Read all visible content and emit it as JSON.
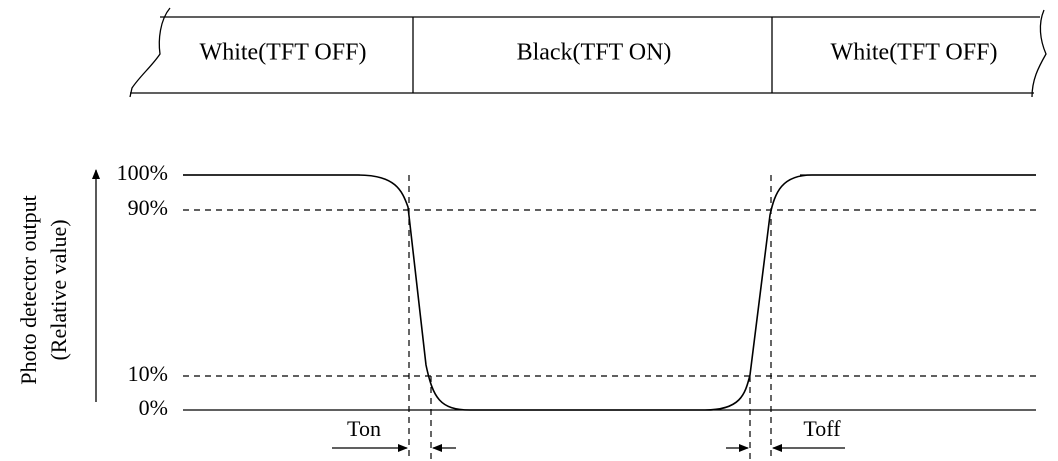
{
  "states": [
    {
      "label": "White(TFT OFF)"
    },
    {
      "label": "Black(TFT ON)"
    },
    {
      "label": "White(TFT OFF)"
    }
  ],
  "y_axis": {
    "label_line1": "Photo detector output",
    "label_line2": "(Relative value)",
    "ticks": [
      "100%",
      "90%",
      "10%",
      "0%"
    ]
  },
  "timing": {
    "on_label": "Ton",
    "off_label": "Toff"
  }
}
